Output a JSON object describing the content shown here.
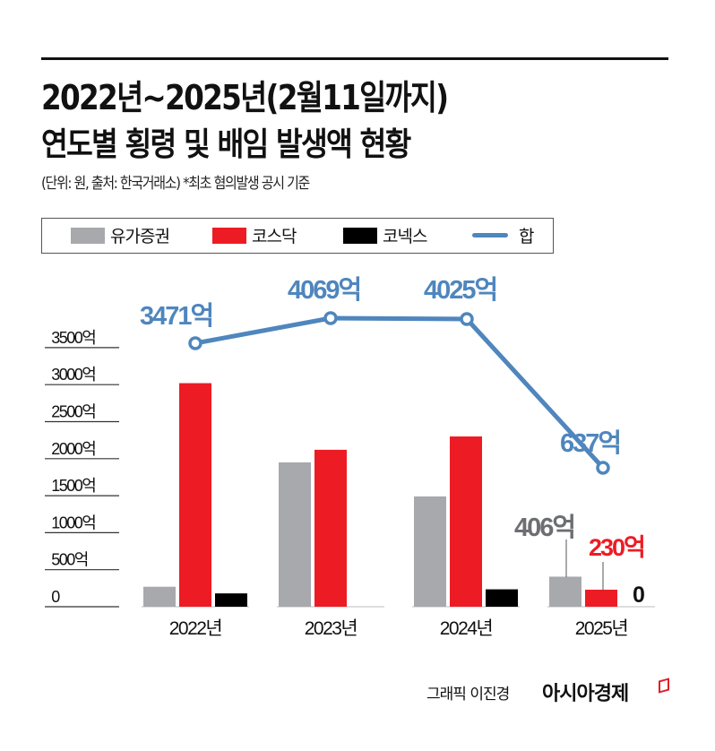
{
  "header": {
    "title_line1": "2022년~2025년(2월11일까지)",
    "title_line2": "연도별 횡령 및  배임 발생액 현황",
    "subtitle": "(단위: 원, 출처: 한국거래소)  *최초 혐의발생 공시 기준"
  },
  "legend": {
    "items": [
      {
        "label": "유가증권",
        "color": "#a7a9ac",
        "kind": "bar"
      },
      {
        "label": "코스닥",
        "color": "#ed1c24",
        "kind": "bar"
      },
      {
        "label": "코넥스",
        "color": "#000000",
        "kind": "bar"
      },
      {
        "label": "합",
        "color": "#4f86bd",
        "kind": "line"
      }
    ]
  },
  "axis": {
    "y_ticks": [
      "0",
      "500억",
      "1000억",
      "1500억",
      "2000억",
      "2500억",
      "3000억",
      "3500억"
    ],
    "x_labels": [
      "2022년",
      "2023년",
      "2024년",
      "2025년"
    ]
  },
  "annotations": {
    "total_labels": [
      "3471억",
      "4069억",
      "4025억",
      "637억"
    ],
    "y2025_kospi_label": "406억",
    "y2025_kosdaq_label": "230억",
    "y2025_konex_label": "0"
  },
  "footer": {
    "credit": "그래픽 이진경",
    "brand": "아시아경제"
  },
  "colors": {
    "kospi": "#a7a9ac",
    "kosdaq": "#ed1c24",
    "konex": "#000000",
    "total": "#4f86bd",
    "kospi_label": "#6d6e71",
    "kosdaq_label": "#ed1c24"
  },
  "chart_data": {
    "type": "bar",
    "title": "2022년~2025년(2월11일까지) 연도별 횡령 및 배임 발생액 현황",
    "subtitle": "(단위: 원, 출처: 한국거래소) *최초 혐의발생 공시 기준",
    "categories": [
      "2022년",
      "2023년",
      "2024년",
      "2025년"
    ],
    "series": [
      {
        "name": "유가증권",
        "type": "bar",
        "values": [
          270,
          1950,
          1490,
          406
        ]
      },
      {
        "name": "코스닥",
        "type": "bar",
        "values": [
          3020,
          2120,
          2300,
          230
        ]
      },
      {
        "name": "코넥스",
        "type": "bar",
        "values": [
          180,
          0,
          235,
          0
        ]
      },
      {
        "name": "합",
        "type": "line",
        "values": [
          3471,
          4069,
          4025,
          637
        ]
      }
    ],
    "unit": "억원",
    "xlabel": "",
    "ylabel": "",
    "ylim": [
      0,
      3500
    ],
    "y_ticks": [
      0,
      500,
      1000,
      1500,
      2000,
      2500,
      3000,
      3500
    ],
    "grid": true,
    "legend_position": "top"
  }
}
